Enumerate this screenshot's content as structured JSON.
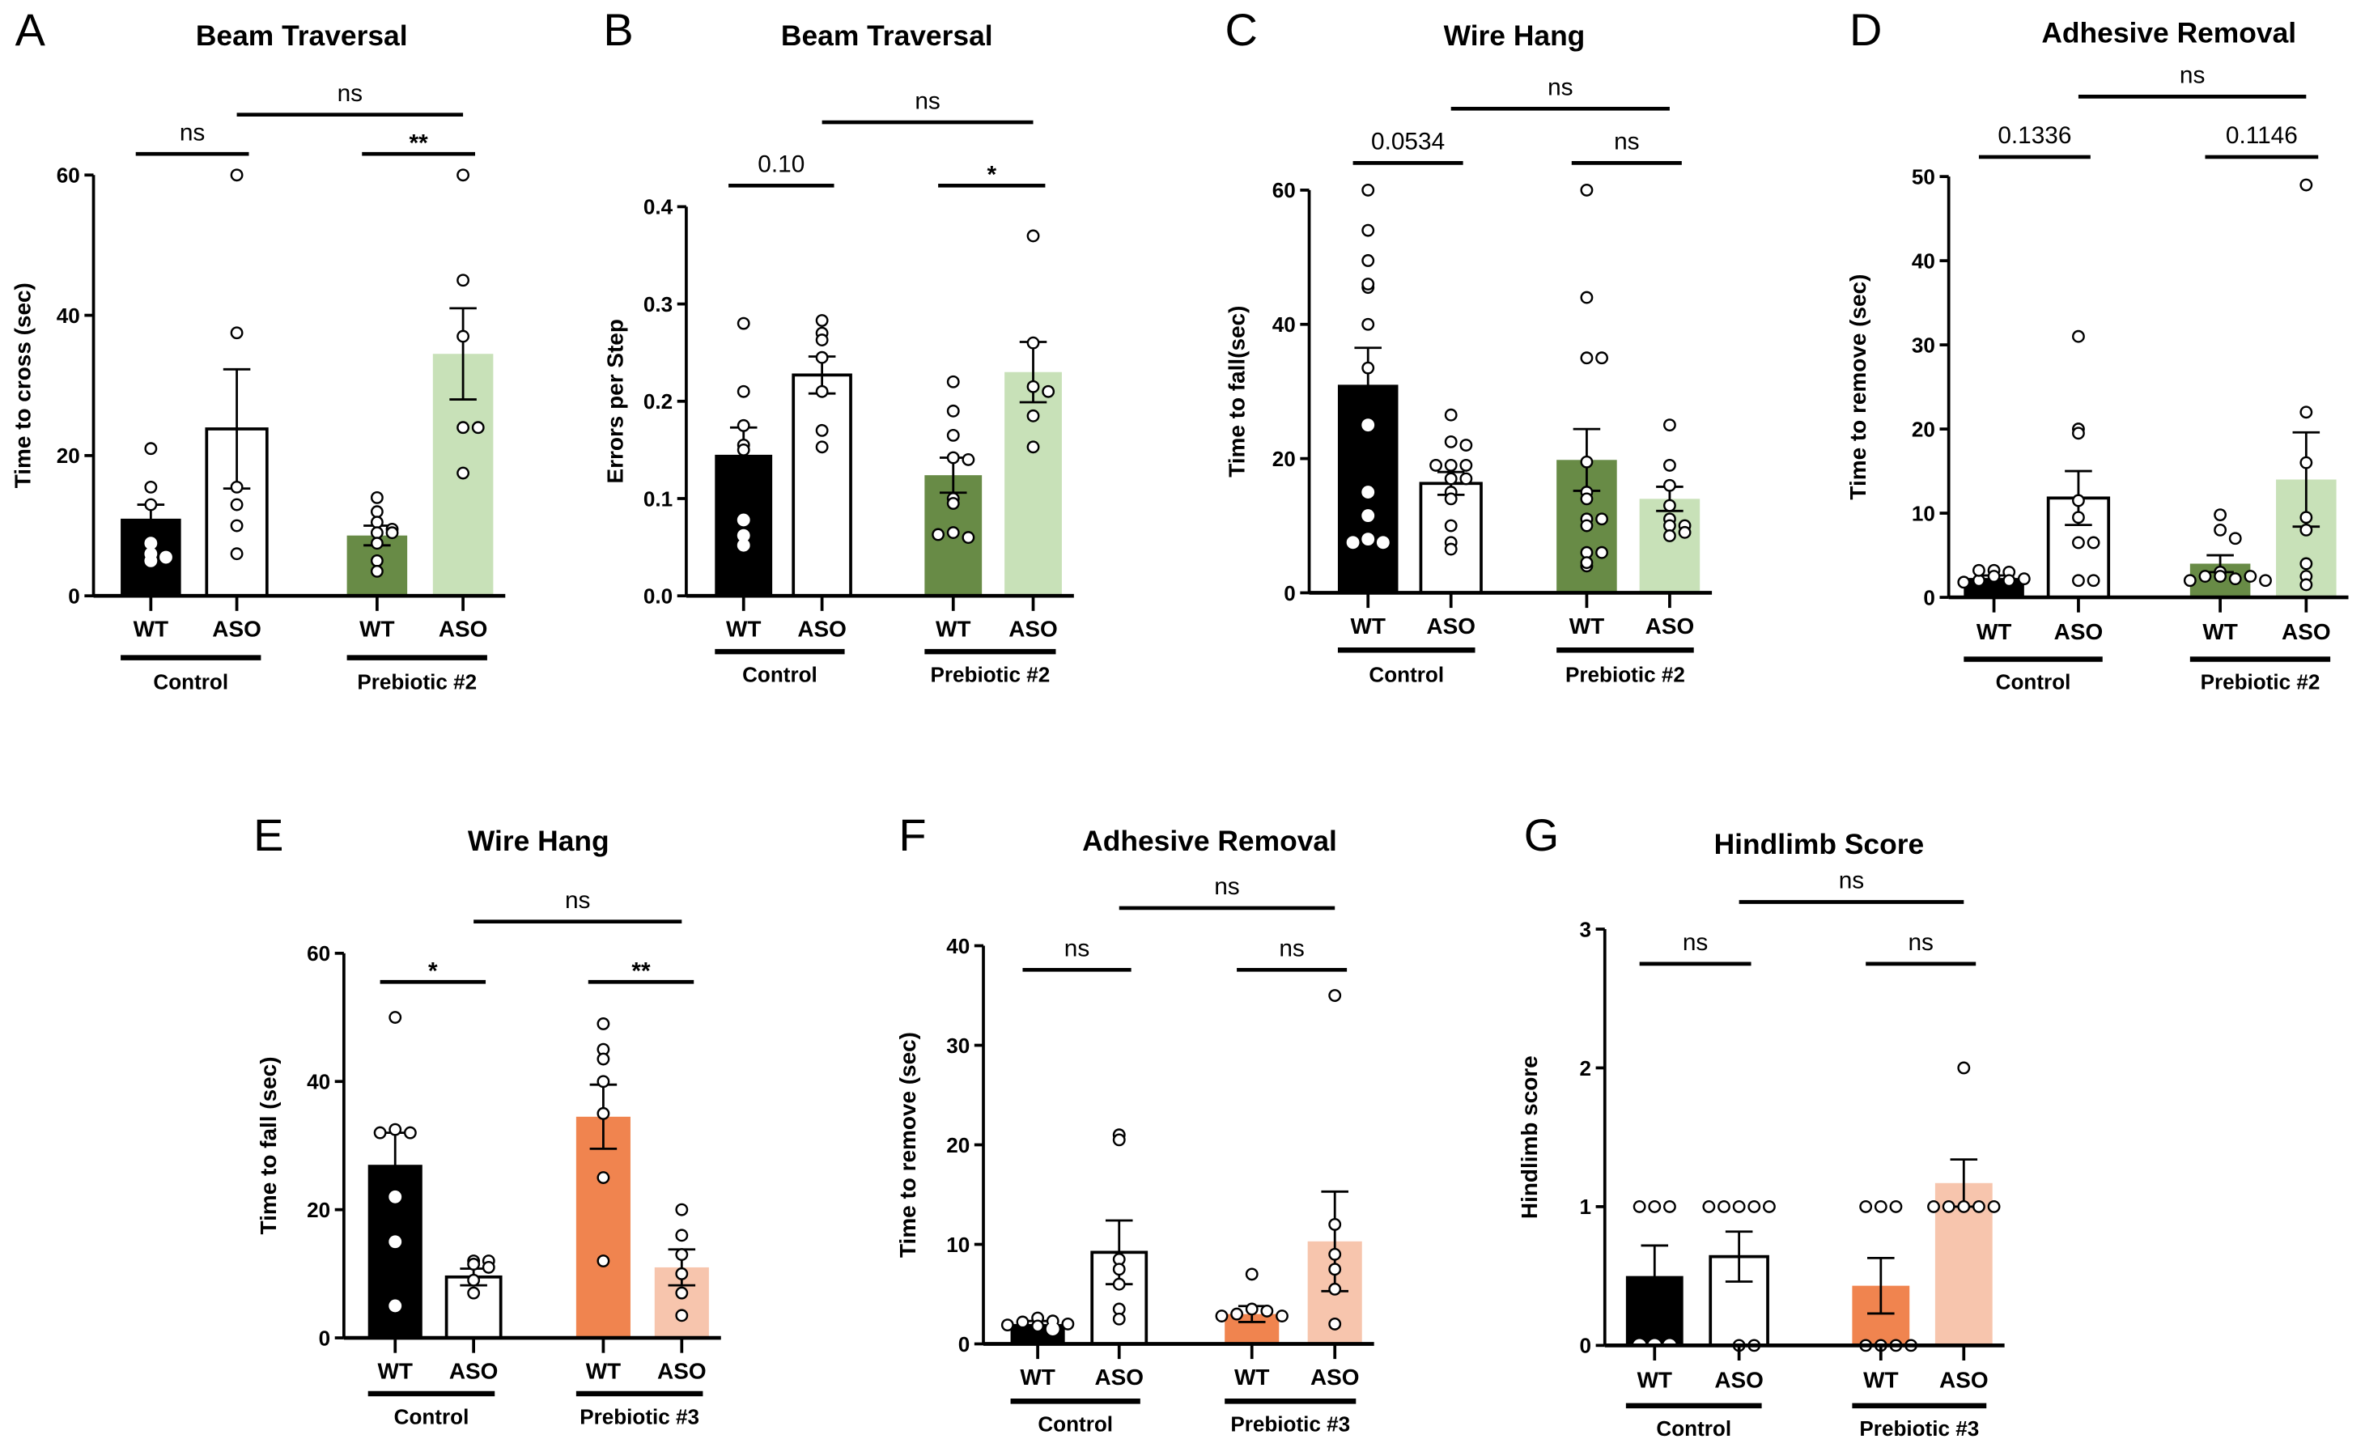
{
  "chart_data": [
    {
      "panel": "A",
      "type": "bar",
      "title": "Beam Traversal",
      "ylabel": "Time to cross (sec)",
      "ylim": [
        0,
        60
      ],
      "yticks": [
        "0",
        "20",
        "40",
        "60"
      ],
      "categories": [
        "WT",
        "ASO",
        "WT",
        "ASO"
      ],
      "groups": [
        "Control",
        "Prebiotic #2"
      ],
      "bars": [
        {
          "label": "WT",
          "group": "Control",
          "mean": 11,
          "sem": 2,
          "color": "#000000",
          "points": [
            21,
            15.5,
            13,
            7.5,
            6,
            5,
            5.5
          ]
        },
        {
          "label": "ASO",
          "group": "Control",
          "mean": 23.8,
          "sem": 8.5,
          "color": "#ffffff",
          "points": [
            60,
            37.5,
            15.5,
            13,
            10,
            6
          ]
        },
        {
          "label": "WT",
          "group": "Prebiotic #2",
          "mean": 8.6,
          "sem": 1.4,
          "color": "#688b46",
          "points": [
            14,
            12,
            10.5,
            9,
            9.5,
            9,
            7.5,
            5,
            3.5
          ]
        },
        {
          "label": "ASO",
          "group": "Prebiotic #2",
          "mean": 34.5,
          "sem": 6.5,
          "color": "#c8e1b8",
          "points": [
            60,
            45,
            37,
            24,
            24,
            17.5
          ]
        }
      ],
      "comparisons": [
        {
          "between": "Control WT vs ASO",
          "label": "ns"
        },
        {
          "between": "Prebiotic #2 WT vs ASO",
          "label": "**"
        },
        {
          "between": "Control ASO vs Prebiotic #2 ASO",
          "label": "ns"
        }
      ]
    },
    {
      "panel": "B",
      "type": "bar",
      "title": "Beam Traversal",
      "ylabel": "Errors per Step",
      "ylim": [
        0,
        0.4
      ],
      "yticks": [
        "0.0",
        "0.1",
        "0.2",
        "0.3",
        "0.4"
      ],
      "categories": [
        "WT",
        "ASO",
        "WT",
        "ASO"
      ],
      "groups": [
        "Control",
        "Prebiotic #2"
      ],
      "bars": [
        {
          "label": "WT",
          "group": "Control",
          "mean": 0.145,
          "sem": 0.028,
          "color": "#000000",
          "points": [
            0.28,
            0.21,
            0.175,
            0.155,
            0.15,
            0.078,
            0.062,
            0.052
          ]
        },
        {
          "label": "ASO",
          "group": "Control",
          "mean": 0.227,
          "sem": 0.019,
          "color": "#ffffff",
          "points": [
            0.283,
            0.27,
            0.263,
            0.245,
            0.21,
            0.17,
            0.153
          ]
        },
        {
          "label": "WT",
          "group": "Prebiotic #2",
          "mean": 0.124,
          "sem": 0.018,
          "color": "#688b46",
          "points": [
            0.22,
            0.19,
            0.165,
            0.142,
            0.14,
            0.1,
            0.095,
            0.065,
            0.06,
            0.063
          ]
        },
        {
          "label": "ASO",
          "group": "Prebiotic #2",
          "mean": 0.23,
          "sem": 0.031,
          "color": "#c8e1b8",
          "points": [
            0.37,
            0.26,
            0.215,
            0.21,
            0.185,
            0.153
          ]
        }
      ],
      "comparisons": [
        {
          "between": "Control WT vs ASO",
          "label": "0.10"
        },
        {
          "between": "Prebiotic #2 WT vs ASO",
          "label": "*"
        },
        {
          "between": "Control ASO vs Prebiotic #2 ASO",
          "label": "ns"
        }
      ]
    },
    {
      "panel": "C",
      "type": "bar",
      "title": "Wire Hang",
      "ylabel": "Time to  fall(sec)",
      "ylim": [
        0,
        60
      ],
      "yticks": [
        "0",
        "20",
        "40",
        "60"
      ],
      "categories": [
        "WT",
        "ASO",
        "WT",
        "ASO"
      ],
      "groups": [
        "Control",
        "Prebiotic #2"
      ],
      "bars": [
        {
          "label": "WT",
          "group": "Control",
          "mean": 31,
          "sem": 5.5,
          "color": "#000000",
          "points": [
            60,
            54,
            49.5,
            45.5,
            46,
            40,
            33.5,
            25,
            15,
            11.5,
            8,
            7.5,
            7.5
          ]
        },
        {
          "label": "ASO",
          "group": "Control",
          "mean": 16.3,
          "sem": 1.7,
          "color": "#ffffff",
          "points": [
            26.5,
            22.5,
            22,
            19,
            19,
            19,
            17,
            17,
            15,
            14,
            10,
            7.5,
            6.5
          ]
        },
        {
          "label": "WT",
          "group": "Prebiotic #2",
          "mean": 19.8,
          "sem": 4.6,
          "color": "#688b46",
          "points": [
            60,
            44,
            35,
            35,
            19.5,
            15,
            14,
            11,
            11,
            10,
            6,
            6,
            4,
            4.5
          ]
        },
        {
          "label": "ASO",
          "group": "Prebiotic #2",
          "mean": 14,
          "sem": 1.8,
          "color": "#c8e1b8",
          "points": [
            25,
            19,
            16,
            13,
            11,
            10,
            10,
            8.5,
            9
          ]
        }
      ],
      "comparisons": [
        {
          "between": "Control WT vs ASO",
          "label": "0.0534"
        },
        {
          "between": "Prebiotic #2 WT vs ASO",
          "label": "ns"
        },
        {
          "between": "Control ASO vs Prebiotic #2 ASO",
          "label": "ns"
        }
      ]
    },
    {
      "panel": "D",
      "type": "bar",
      "title": "Adhesive Removal",
      "ylabel": "Time to remove (sec)",
      "ylim": [
        0,
        50
      ],
      "yticks": [
        "0",
        "10",
        "20",
        "30",
        "40",
        "50"
      ],
      "categories": [
        "WT",
        "ASO",
        "WT",
        "ASO"
      ],
      "groups": [
        "Control",
        "Prebiotic #2"
      ],
      "bars": [
        {
          "label": "WT",
          "group": "Control",
          "mean": 2.3,
          "sem": 0.3,
          "color": "#000000",
          "points": [
            3.2,
            3,
            2.5,
            2,
            2,
            2.2,
            1.8,
            3.2
          ]
        },
        {
          "label": "ASO",
          "group": "Control",
          "mean": 11.8,
          "sem": 3.2,
          "color": "#ffffff",
          "points": [
            31,
            20,
            19.5,
            11.5,
            9.5,
            6.5,
            6.5,
            2,
            2
          ]
        },
        {
          "label": "WT",
          "group": "Prebiotic #2",
          "mean": 4,
          "sem": 1,
          "color": "#688b46",
          "points": [
            9.8,
            8,
            7,
            3,
            2.5,
            2.2,
            2.5,
            2.5,
            2,
            2
          ]
        },
        {
          "label": "ASO",
          "group": "Prebiotic #2",
          "mean": 14,
          "sem": 5.6,
          "color": "#c8e1b8",
          "points": [
            49,
            22,
            16,
            9.5,
            8,
            4,
            2.5,
            1.5
          ]
        }
      ],
      "comparisons": [
        {
          "between": "Control WT vs ASO",
          "label": "0.1336"
        },
        {
          "between": "Prebiotic #2 WT vs ASO",
          "label": "0.1146"
        },
        {
          "between": "Control ASO vs Prebiotic #2 ASO",
          "label": "ns"
        }
      ]
    },
    {
      "panel": "E",
      "type": "bar",
      "title": "Wire Hang",
      "ylabel": "Time to fall (sec)",
      "ylim": [
        0,
        60
      ],
      "yticks": [
        "0",
        "20",
        "40",
        "60"
      ],
      "categories": [
        "WT",
        "ASO",
        "WT",
        "ASO"
      ],
      "groups": [
        "Control",
        "Prebiotic #3"
      ],
      "bars": [
        {
          "label": "WT",
          "group": "Control",
          "mean": 27,
          "sem": 5,
          "color": "#000000",
          "points": [
            50,
            32.5,
            32,
            32,
            22,
            15,
            5
          ]
        },
        {
          "label": "ASO",
          "group": "Control",
          "mean": 9.5,
          "sem": 1.3,
          "color": "#ffffff",
          "points": [
            12,
            12,
            11.5,
            11,
            9,
            7
          ]
        },
        {
          "label": "WT",
          "group": "Prebiotic #3",
          "mean": 34.5,
          "sem": 5,
          "color": "#f0844f",
          "points": [
            49,
            45,
            43.5,
            40,
            35,
            25,
            12
          ]
        },
        {
          "label": "ASO",
          "group": "Prebiotic #3",
          "mean": 11,
          "sem": 2.8,
          "color": "#f7c5ad",
          "points": [
            20,
            16,
            13,
            10,
            7,
            3.5
          ]
        }
      ],
      "comparisons": [
        {
          "between": "Control WT vs ASO",
          "label": "*"
        },
        {
          "between": "Prebiotic #3 WT vs ASO",
          "label": "**"
        },
        {
          "between": "Control ASO vs Prebiotic #3 ASO",
          "label": "ns"
        }
      ]
    },
    {
      "panel": "F",
      "type": "bar",
      "title": "Adhesive Removal",
      "ylabel": "Time to remove (sec)",
      "ylim": [
        0,
        40
      ],
      "yticks": [
        "0",
        "10",
        "20",
        "30",
        "40"
      ],
      "categories": [
        "WT",
        "ASO",
        "WT",
        "ASO"
      ],
      "groups": [
        "Control",
        "Prebiotic #3"
      ],
      "bars": [
        {
          "label": "WT",
          "group": "Control",
          "mean": 2,
          "sem": 0.3,
          "color": "#000000",
          "points": [
            2.6,
            2.3,
            2.2,
            2,
            1.8,
            1.9,
            1.5
          ]
        },
        {
          "label": "ASO",
          "group": "Control",
          "mean": 9.2,
          "sem": 3.2,
          "color": "#ffffff",
          "points": [
            21,
            20.5,
            8.5,
            7.5,
            6,
            3.5,
            2.5
          ]
        },
        {
          "label": "WT",
          "group": "Prebiotic #3",
          "mean": 3,
          "sem": 0.8,
          "color": "#f0844f",
          "points": [
            7,
            3.5,
            3.3,
            3,
            2.8,
            2.8
          ]
        },
        {
          "label": "ASO",
          "group": "Prebiotic #3",
          "mean": 10.3,
          "sem": 5,
          "color": "#f7c5ad",
          "points": [
            35,
            12,
            9,
            7.5,
            5.5,
            2
          ]
        }
      ],
      "comparisons": [
        {
          "between": "Control WT vs ASO",
          "label": "ns"
        },
        {
          "between": "Prebiotic #3 WT vs ASO",
          "label": "ns"
        },
        {
          "between": "Control ASO vs Prebiotic #3 ASO",
          "label": "ns"
        }
      ]
    },
    {
      "panel": "G",
      "type": "bar",
      "title": "Hindlimb Score",
      "ylabel": "Hindlimb score",
      "ylim": [
        0,
        3
      ],
      "yticks": [
        "0",
        "1",
        "2",
        "3"
      ],
      "categories": [
        "WT",
        "ASO",
        "WT",
        "ASO"
      ],
      "groups": [
        "Control",
        "Prebiotic #3"
      ],
      "bars": [
        {
          "label": "WT",
          "group": "Control",
          "mean": 0.5,
          "sem": 0.22,
          "color": "#000000",
          "points": [
            1,
            1,
            1,
            0,
            0,
            0
          ]
        },
        {
          "label": "ASO",
          "group": "Control",
          "mean": 0.64,
          "sem": 0.18,
          "color": "#ffffff",
          "points": [
            1,
            1,
            1,
            1,
            1,
            0,
            0
          ]
        },
        {
          "label": "WT",
          "group": "Prebiotic #3",
          "mean": 0.43,
          "sem": 0.2,
          "color": "#f0844f",
          "points": [
            1,
            1,
            1,
            0,
            0,
            0,
            0
          ]
        },
        {
          "label": "ASO",
          "group": "Prebiotic #3",
          "mean": 1.17,
          "sem": 0.17,
          "color": "#f7c5ad",
          "points": [
            2,
            1,
            1,
            1,
            1,
            1
          ]
        }
      ],
      "comparisons": [
        {
          "between": "Control WT vs ASO",
          "label": "ns"
        },
        {
          "between": "Prebiotic #3 WT vs ASO",
          "label": "ns"
        },
        {
          "between": "Control ASO vs Prebiotic #3 ASO",
          "label": "ns"
        }
      ]
    }
  ]
}
